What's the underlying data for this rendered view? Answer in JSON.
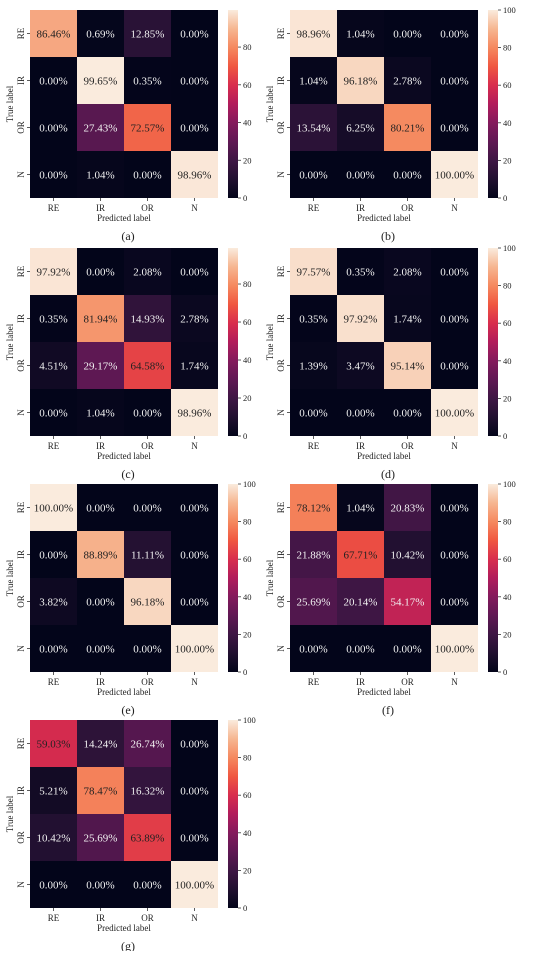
{
  "chart_data": [
    {
      "type": "heatmap",
      "caption": "(a)",
      "xlabel": "Predicted label",
      "ylabel": "True label",
      "x_categories": [
        "RE",
        "IR",
        "OR",
        "N"
      ],
      "y_categories": [
        "RE",
        "IR",
        "OR",
        "N"
      ],
      "values": [
        [
          86.46,
          0.69,
          12.85,
          0.0
        ],
        [
          0.0,
          99.65,
          0.35,
          0.0
        ],
        [
          0.0,
          27.43,
          72.57,
          0.0
        ],
        [
          0.0,
          1.04,
          0.0,
          98.96
        ]
      ],
      "cell_labels": [
        [
          "86.46%",
          "0.69%",
          "12.85%",
          "0.00%"
        ],
        [
          "0.00%",
          "99.65%",
          "0.35%",
          "0.00%"
        ],
        [
          "0.00%",
          "27.43%",
          "72.57%",
          "0.00%"
        ],
        [
          "0.00%",
          "1.04%",
          "0.00%",
          "98.96%"
        ]
      ],
      "colorbar_ticks": [
        0,
        20,
        40,
        60,
        80
      ],
      "colorbar_range": [
        0,
        99.65
      ],
      "colormap": "rocket"
    },
    {
      "type": "heatmap",
      "caption": "(b)",
      "xlabel": "Predicted label",
      "ylabel": "True label",
      "x_categories": [
        "RE",
        "IR",
        "OR",
        "N"
      ],
      "y_categories": [
        "RE",
        "IR",
        "OR",
        "N"
      ],
      "values": [
        [
          98.96,
          1.04,
          0.0,
          0.0
        ],
        [
          1.04,
          96.18,
          2.78,
          0.0
        ],
        [
          13.54,
          6.25,
          80.21,
          0.0
        ],
        [
          0.0,
          0.0,
          0.0,
          100.0
        ]
      ],
      "cell_labels": [
        [
          "98.96%",
          "1.04%",
          "0.00%",
          "0.00%"
        ],
        [
          "1.04%",
          "96.18%",
          "2.78%",
          "0.00%"
        ],
        [
          "13.54%",
          "6.25%",
          "80.21%",
          "0.00%"
        ],
        [
          "0.00%",
          "0.00%",
          "0.00%",
          "100.00%"
        ]
      ],
      "colorbar_ticks": [
        0,
        20,
        40,
        60,
        80,
        100
      ],
      "colorbar_range": [
        0,
        100
      ],
      "colormap": "rocket"
    },
    {
      "type": "heatmap",
      "caption": "(c)",
      "xlabel": "Predicted label",
      "ylabel": "True label",
      "x_categories": [
        "RE",
        "IR",
        "OR",
        "N"
      ],
      "y_categories": [
        "RE",
        "IR",
        "OR",
        "N"
      ],
      "values": [
        [
          97.92,
          0.0,
          2.08,
          0.0
        ],
        [
          0.35,
          81.94,
          14.93,
          2.78
        ],
        [
          4.51,
          29.17,
          64.58,
          1.74
        ],
        [
          0.0,
          1.04,
          0.0,
          98.96
        ]
      ],
      "cell_labels": [
        [
          "97.92%",
          "0.00%",
          "2.08%",
          "0.00%"
        ],
        [
          "0.35%",
          "81.94%",
          "14.93%",
          "2.78%"
        ],
        [
          "4.51%",
          "29.17%",
          "64.58%",
          "1.74%"
        ],
        [
          "0.00%",
          "1.04%",
          "0.00%",
          "98.96%"
        ]
      ],
      "colorbar_ticks": [
        0,
        20,
        40,
        60,
        80
      ],
      "colorbar_range": [
        0,
        98.96
      ],
      "colormap": "rocket"
    },
    {
      "type": "heatmap",
      "caption": "(d)",
      "xlabel": "Predicted label",
      "ylabel": "True label",
      "x_categories": [
        "RE",
        "IR",
        "OR",
        "N"
      ],
      "y_categories": [
        "RE",
        "IR",
        "OR",
        "N"
      ],
      "values": [
        [
          97.57,
          0.35,
          2.08,
          0.0
        ],
        [
          0.35,
          97.92,
          1.74,
          0.0
        ],
        [
          1.39,
          3.47,
          95.14,
          0.0
        ],
        [
          0.0,
          0.0,
          0.0,
          100.0
        ]
      ],
      "cell_labels": [
        [
          "97.57%",
          "0.35%",
          "2.08%",
          "0.00%"
        ],
        [
          "0.35%",
          "97.92%",
          "1.74%",
          "0.00%"
        ],
        [
          "1.39%",
          "3.47%",
          "95.14%",
          "0.00%"
        ],
        [
          "0.00%",
          "0.00%",
          "0.00%",
          "100.00%"
        ]
      ],
      "colorbar_ticks": [
        0,
        20,
        40,
        60,
        80,
        100
      ],
      "colorbar_range": [
        0,
        100
      ],
      "colormap": "rocket"
    },
    {
      "type": "heatmap",
      "caption": "(e)",
      "xlabel": "Predicted label",
      "ylabel": "True label",
      "x_categories": [
        "RE",
        "IR",
        "OR",
        "N"
      ],
      "y_categories": [
        "RE",
        "IR",
        "OR",
        "N"
      ],
      "values": [
        [
          100.0,
          0.0,
          0.0,
          0.0
        ],
        [
          0.0,
          88.89,
          11.11,
          0.0
        ],
        [
          3.82,
          0.0,
          96.18,
          0.0
        ],
        [
          0.0,
          0.0,
          0.0,
          100.0
        ]
      ],
      "cell_labels": [
        [
          "100.00%",
          "0.00%",
          "0.00%",
          "0.00%"
        ],
        [
          "0.00%",
          "88.89%",
          "11.11%",
          "0.00%"
        ],
        [
          "3.82%",
          "0.00%",
          "96.18%",
          "0.00%"
        ],
        [
          "0.00%",
          "0.00%",
          "0.00%",
          "100.00%"
        ]
      ],
      "colorbar_ticks": [
        0,
        20,
        40,
        60,
        80,
        100
      ],
      "colorbar_range": [
        0,
        100
      ],
      "colormap": "rocket"
    },
    {
      "type": "heatmap",
      "caption": "(f)",
      "xlabel": "Predicted label",
      "ylabel": "True label",
      "x_categories": [
        "RE",
        "IR",
        "OR",
        "N"
      ],
      "y_categories": [
        "RE",
        "IR",
        "OR",
        "N"
      ],
      "values": [
        [
          78.12,
          1.04,
          20.83,
          0.0
        ],
        [
          21.88,
          67.71,
          10.42,
          0.0
        ],
        [
          25.69,
          20.14,
          54.17,
          0.0
        ],
        [
          0.0,
          0.0,
          0.0,
          100.0
        ]
      ],
      "cell_labels": [
        [
          "78.12%",
          "1.04%",
          "20.83%",
          "0.00%"
        ],
        [
          "21.88%",
          "67.71%",
          "10.42%",
          "0.00%"
        ],
        [
          "25.69%",
          "20.14%",
          "54.17%",
          "0.00%"
        ],
        [
          "0.00%",
          "0.00%",
          "0.00%",
          "100.00%"
        ]
      ],
      "colorbar_ticks": [
        0,
        20,
        40,
        60,
        80,
        100
      ],
      "colorbar_range": [
        0,
        100
      ],
      "colormap": "rocket"
    },
    {
      "type": "heatmap",
      "caption": "(g)",
      "xlabel": "Predicted label",
      "ylabel": "True label",
      "x_categories": [
        "RE",
        "IR",
        "OR",
        "N"
      ],
      "y_categories": [
        "RE",
        "IR",
        "OR",
        "N"
      ],
      "values": [
        [
          59.03,
          14.24,
          26.74,
          0.0
        ],
        [
          5.21,
          78.47,
          16.32,
          0.0
        ],
        [
          10.42,
          25.69,
          63.89,
          0.0
        ],
        [
          0.0,
          0.0,
          0.0,
          100.0
        ]
      ],
      "cell_labels": [
        [
          "59.03%",
          "14.24%",
          "26.74%",
          "0.00%"
        ],
        [
          "5.21%",
          "78.47%",
          "16.32%",
          "0.00%"
        ],
        [
          "10.42%",
          "25.69%",
          "63.89%",
          "0.00%"
        ],
        [
          "0.00%",
          "0.00%",
          "0.00%",
          "100.00%"
        ]
      ],
      "colorbar_ticks": [
        0,
        20,
        40,
        60,
        80,
        100
      ],
      "colorbar_range": [
        0,
        100
      ],
      "colormap": "rocket"
    }
  ]
}
